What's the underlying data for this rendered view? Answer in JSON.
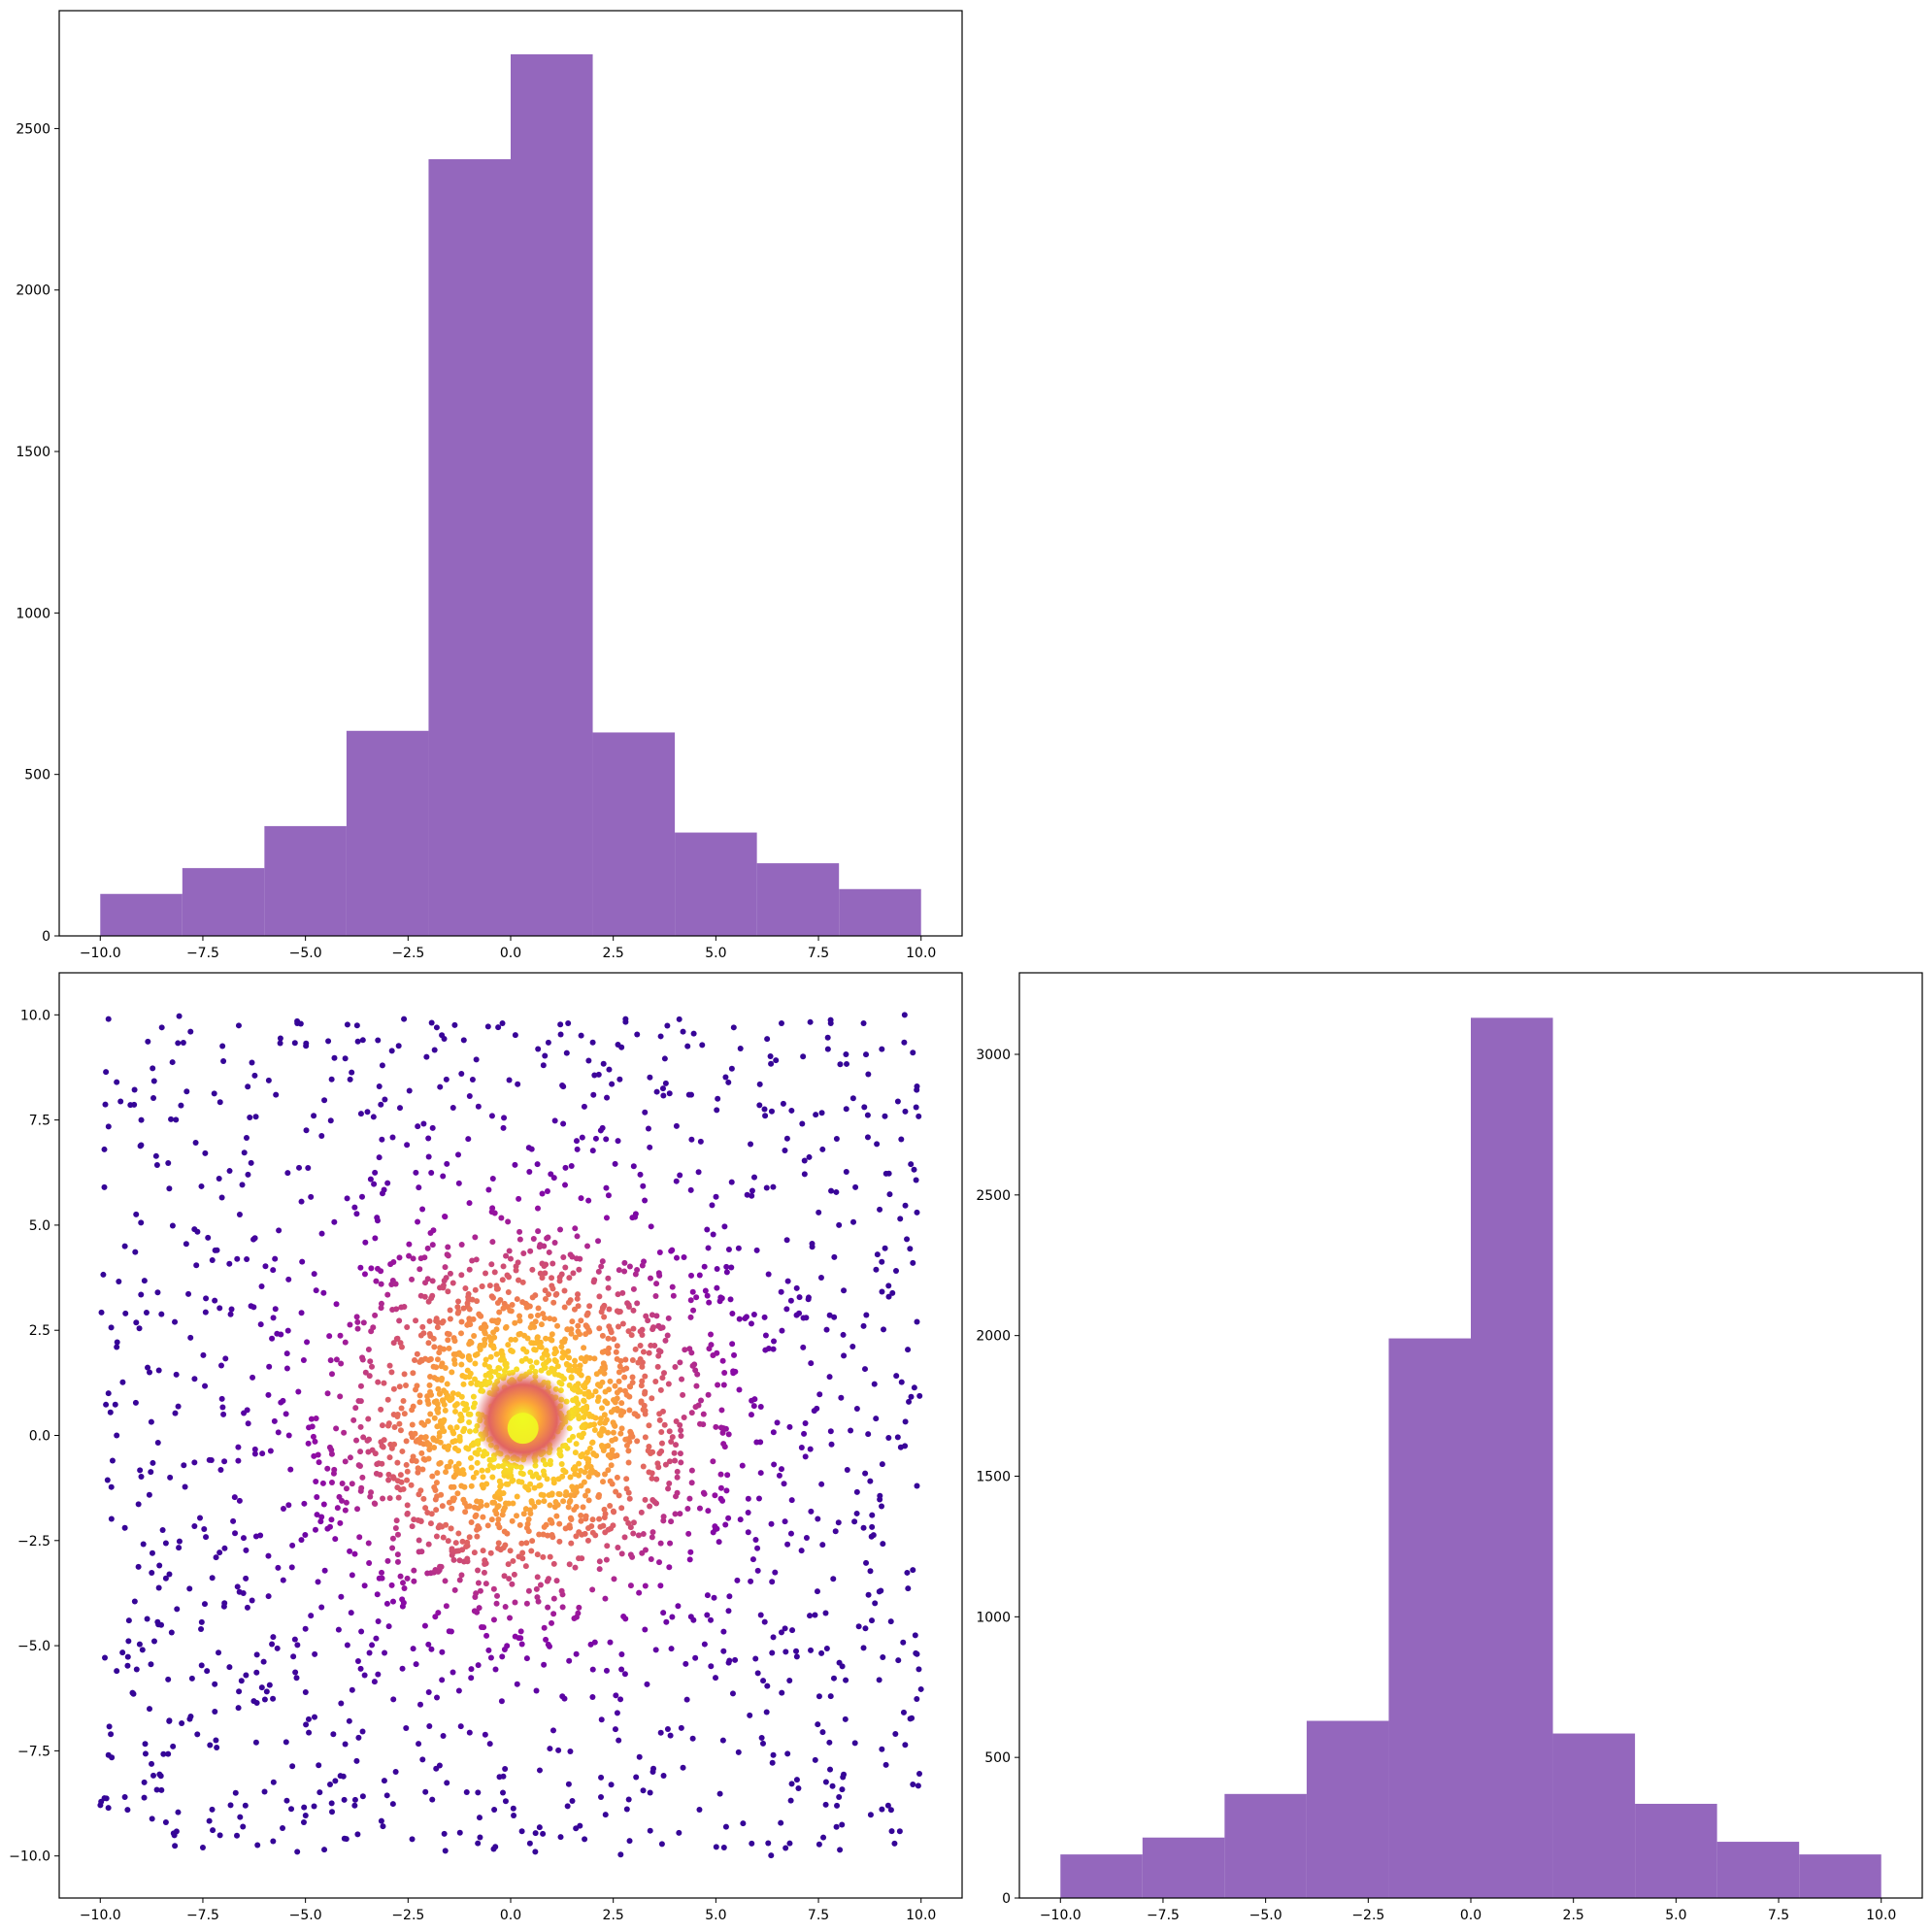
{
  "colors": {
    "hist_fill": "#9467bd",
    "scatter_colormap": "plasma",
    "background": "#ffffff"
  },
  "chart_data": [
    {
      "id": "x-histogram",
      "type": "bar",
      "position": "top-left",
      "title": "",
      "xlabel": "",
      "ylabel": "",
      "bin_edges": [
        -10,
        -8,
        -6,
        -4,
        -2,
        0,
        2,
        4,
        6,
        8,
        10
      ],
      "values": [
        130,
        210,
        340,
        635,
        2405,
        2730,
        630,
        320,
        225,
        145
      ],
      "xlim": [
        -11,
        11
      ],
      "ylim": [
        0,
        2865
      ],
      "xticks": [
        -10.0,
        -7.5,
        -5.0,
        -2.5,
        0.0,
        2.5,
        5.0,
        7.5,
        10.0
      ],
      "xtick_labels": [
        "−10.0",
        "−7.5",
        "−5.0",
        "−2.5",
        "0.0",
        "2.5",
        "5.0",
        "7.5",
        "10.0"
      ],
      "yticks": [
        0,
        500,
        1000,
        1500,
        2000,
        2500
      ],
      "ytick_labels": [
        "0",
        "500",
        "1000",
        "1500",
        "2000",
        "2500"
      ],
      "grid": false
    },
    {
      "id": "joint-scatter",
      "type": "scatter",
      "position": "bottom-left",
      "title": "",
      "xlabel": "",
      "ylabel": "",
      "xlim": [
        -11,
        11
      ],
      "ylim": [
        -11,
        11
      ],
      "xticks": [
        -10.0,
        -7.5,
        -5.0,
        -2.5,
        0.0,
        2.5,
        5.0,
        7.5,
        10.0
      ],
      "xtick_labels": [
        "−10.0",
        "−7.5",
        "−5.0",
        "−2.5",
        "0.0",
        "2.5",
        "5.0",
        "7.5",
        "10.0"
      ],
      "yticks": [
        -10.0,
        -7.5,
        -5.0,
        -2.5,
        0.0,
        2.5,
        5.0,
        7.5,
        10.0
      ],
      "ytick_labels": [
        "−10.0",
        "−7.5",
        "−5.0",
        "−2.5",
        "0.0",
        "2.5",
        "5.0",
        "7.5",
        "10.0"
      ],
      "colormap": "plasma",
      "color_encoding": "point density (yellow at center, dark purple at edges)",
      "approx_point_count": 3000,
      "center": [
        0.3,
        0.4
      ],
      "grid": false,
      "points": [
        [
          -9.8,
          9.9
        ],
        [
          -9.6,
          8.4
        ],
        [
          -9.0,
          7.5
        ],
        [
          -8.5,
          9.7
        ],
        [
          -7.8,
          9.6
        ],
        [
          -7.0,
          8.9
        ],
        [
          -5.2,
          9.8
        ],
        [
          -3.6,
          9.4
        ],
        [
          -2.6,
          9.9
        ],
        [
          -1.8,
          9.7
        ],
        [
          -0.2,
          9.8
        ],
        [
          1.4,
          9.8
        ],
        [
          2.8,
          9.9
        ],
        [
          4.2,
          9.6
        ],
        [
          5.6,
          9.2
        ],
        [
          6.6,
          9.8
        ],
        [
          7.8,
          9.8
        ],
        [
          8.6,
          9.8
        ],
        [
          9.6,
          10.0
        ],
        [
          9.9,
          8.3
        ],
        [
          9.8,
          9.1
        ],
        [
          -9.9,
          6.8
        ],
        [
          -9.9,
          5.9
        ],
        [
          -9.4,
          4.5
        ],
        [
          -9.6,
          2.1
        ],
        [
          -9.8,
          1.0
        ],
        [
          -9.6,
          0.0
        ],
        [
          -9.7,
          -0.6
        ],
        [
          -9.4,
          -2.2
        ],
        [
          -9.3,
          -4.4
        ],
        [
          -9.6,
          -5.6
        ],
        [
          -9.8,
          -7.6
        ],
        [
          -9.4,
          -8.6
        ],
        [
          -8.8,
          -6.5
        ],
        [
          -8.4,
          -9.2
        ],
        [
          -7.5,
          -9.8
        ],
        [
          -6.7,
          -8.5
        ],
        [
          -5.2,
          -9.9
        ],
        [
          -3.8,
          -8.8
        ],
        [
          -2.4,
          -9.6
        ],
        [
          -0.8,
          -9.7
        ],
        [
          0.6,
          -9.9
        ],
        [
          1.8,
          -9.6
        ],
        [
          3.4,
          -9.4
        ],
        [
          4.6,
          -8.9
        ],
        [
          5.2,
          -9.8
        ],
        [
          6.8,
          -9.7
        ],
        [
          8.0,
          -8.6
        ],
        [
          9.2,
          -8.8
        ],
        [
          9.8,
          -8.3
        ],
        [
          9.9,
          -5.2
        ],
        [
          9.8,
          -3.2
        ],
        [
          9.9,
          -1.2
        ],
        [
          9.7,
          0.8
        ],
        [
          9.9,
          2.7
        ],
        [
          9.8,
          4.1
        ],
        [
          9.9,
          5.3
        ],
        [
          -8.6,
          3.4
        ],
        [
          -7.2,
          4.4
        ],
        [
          -6.4,
          6.2
        ],
        [
          -4.8,
          7.6
        ],
        [
          -3.2,
          8.3
        ],
        [
          -1.2,
          8.6
        ],
        [
          0.8,
          8.8
        ],
        [
          2.4,
          8.7
        ],
        [
          4.4,
          8.1
        ],
        [
          6.2,
          7.6
        ],
        [
          7.6,
          6.8
        ],
        [
          8.4,
          5.9
        ],
        [
          -8.4,
          -3.4
        ],
        [
          -7.4,
          -5.6
        ],
        [
          -6.2,
          -7.3
        ],
        [
          -4.4,
          -8.3
        ],
        [
          -2.8,
          -8.0
        ],
        [
          -0.4,
          -8.9
        ],
        [
          2.2,
          -8.6
        ],
        [
          4.2,
          -7.9
        ],
        [
          6.4,
          -7.6
        ],
        [
          7.8,
          -6.2
        ],
        [
          8.8,
          -4.4
        ],
        [
          8.6,
          -2.2
        ],
        [
          8.9,
          0.4
        ],
        [
          8.6,
          2.6
        ],
        [
          -8.8,
          1.5
        ],
        [
          -8.3,
          -1.0
        ],
        [
          -7.0,
          0.5
        ],
        [
          -6.2,
          -2.4
        ],
        [
          -5.6,
          2.4
        ],
        [
          -5.0,
          -4.6
        ],
        [
          -4.6,
          4.8
        ],
        [
          -4.0,
          -1.6
        ],
        [
          -3.6,
          1.8
        ],
        [
          -3.2,
          -3.4
        ],
        [
          -2.8,
          3.6
        ],
        [
          -2.4,
          -0.6
        ],
        [
          -2.0,
          2.2
        ],
        [
          -1.8,
          -2.4
        ],
        [
          -1.4,
          1.0
        ],
        [
          -1.2,
          -1.2
        ],
        [
          -1.0,
          3.0
        ],
        [
          -0.8,
          -0.2
        ],
        [
          -0.6,
          1.8
        ],
        [
          -0.4,
          -1.6
        ],
        [
          -0.2,
          0.6
        ],
        [
          0.0,
          -0.8
        ],
        [
          0.2,
          2.4
        ],
        [
          0.4,
          -2.2
        ],
        [
          0.6,
          1.4
        ],
        [
          0.8,
          -0.4
        ],
        [
          1.0,
          0.8
        ],
        [
          1.2,
          -1.4
        ],
        [
          1.4,
          2.0
        ],
        [
          1.6,
          -0.2
        ],
        [
          1.8,
          1.2
        ],
        [
          2.0,
          -2.0
        ],
        [
          2.2,
          0.4
        ],
        [
          2.4,
          3.0
        ],
        [
          2.6,
          -1.0
        ],
        [
          2.8,
          1.8
        ],
        [
          3.2,
          -2.8
        ],
        [
          3.6,
          2.6
        ],
        [
          4.0,
          -0.6
        ],
        [
          4.4,
          3.8
        ],
        [
          4.8,
          -3.8
        ],
        [
          5.2,
          1.2
        ],
        [
          5.6,
          -2.0
        ],
        [
          6.0,
          4.4
        ],
        [
          6.4,
          -4.8
        ],
        [
          6.8,
          0.2
        ],
        [
          7.2,
          2.8
        ],
        [
          7.6,
          -2.6
        ],
        [
          8.0,
          5.0
        ],
        [
          0.0,
          4.2
        ],
        [
          0.4,
          -4.0
        ],
        [
          -1.6,
          5.2
        ],
        [
          1.6,
          -5.2
        ],
        [
          -3.0,
          6.0
        ],
        [
          3.0,
          6.4
        ],
        [
          -2.2,
          -6.4
        ],
        [
          2.6,
          -6.6
        ],
        [
          -5.4,
          0.0
        ],
        [
          5.0,
          0.2
        ],
        [
          -6.8,
          3.0
        ],
        [
          6.6,
          -0.8
        ]
      ]
    },
    {
      "id": "y-histogram",
      "type": "bar",
      "position": "bottom-right",
      "title": "",
      "xlabel": "",
      "ylabel": "",
      "bin_edges": [
        -10,
        -8,
        -6,
        -4,
        -2,
        0,
        2,
        4,
        6,
        8,
        10
      ],
      "values": [
        155,
        215,
        370,
        630,
        1990,
        3130,
        585,
        335,
        200,
        155
      ],
      "xlim": [
        -11,
        11
      ],
      "ylim": [
        0,
        3290
      ],
      "xticks": [
        -10.0,
        -7.5,
        -5.0,
        -2.5,
        0.0,
        2.5,
        5.0,
        7.5,
        10.0
      ],
      "xtick_labels": [
        "−10.0",
        "−7.5",
        "−5.0",
        "−2.5",
        "0.0",
        "2.5",
        "5.0",
        "7.5",
        "10.0"
      ],
      "yticks": [
        0,
        500,
        1000,
        1500,
        2000,
        2500,
        3000
      ],
      "ytick_labels": [
        "0",
        "500",
        "1000",
        "1500",
        "2000",
        "2500",
        "3000"
      ],
      "grid": false
    }
  ]
}
